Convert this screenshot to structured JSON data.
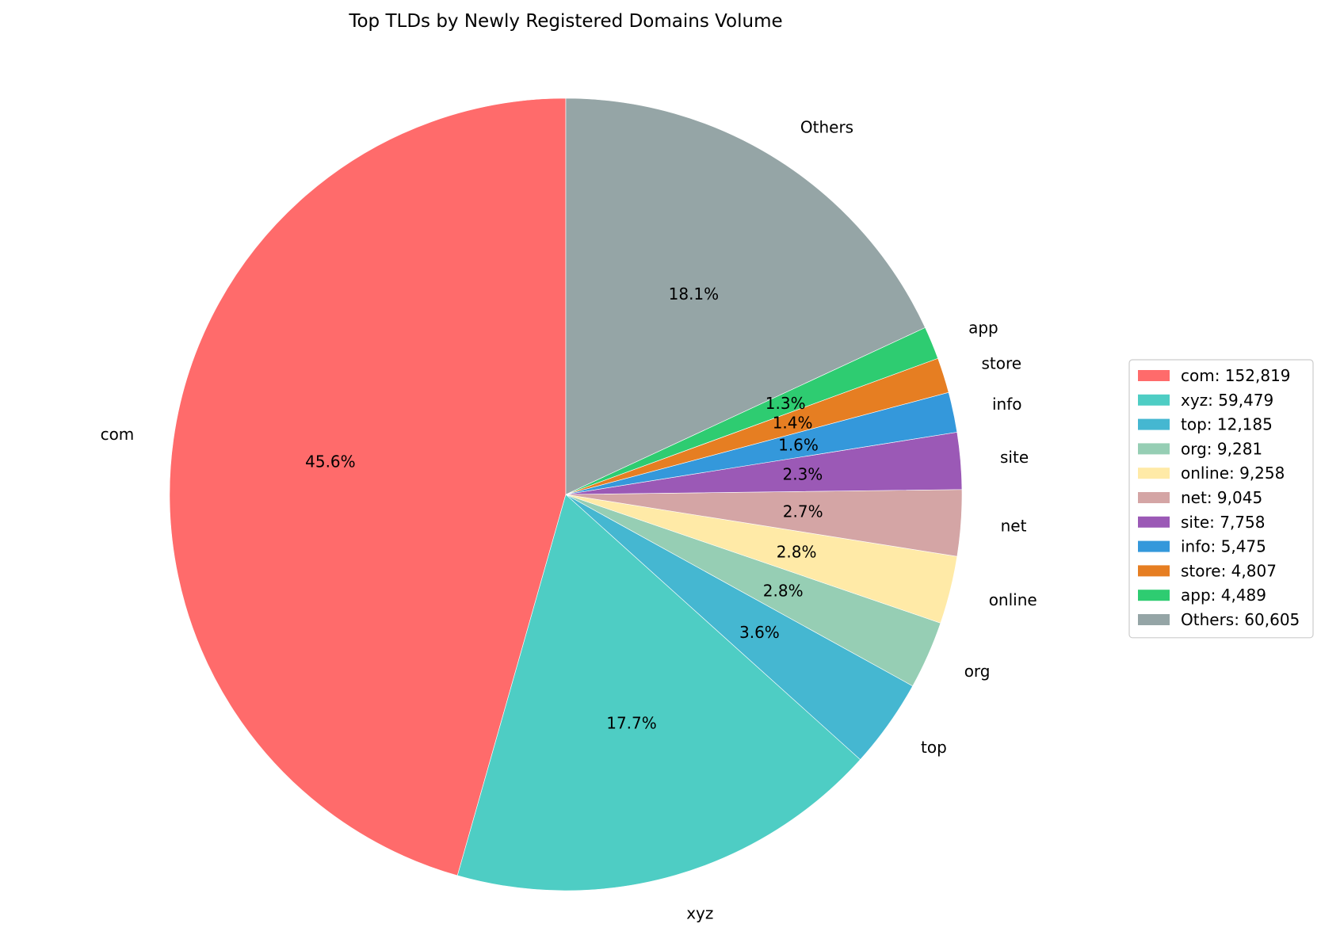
{
  "chart_data": {
    "type": "pie",
    "title": "Top TLDs by Newly Registered Domains Volume",
    "start_angle_deg": 90,
    "direction": "counterclockwise",
    "legend_position": "right",
    "slices": [
      {
        "label": "com",
        "value": 152819,
        "percent_label": "45.6%",
        "legend_label": "com: 152,819",
        "color": "#ff6b6b"
      },
      {
        "label": "xyz",
        "value": 59479,
        "percent_label": "17.7%",
        "legend_label": "xyz: 59,479",
        "color": "#4ecdc4"
      },
      {
        "label": "top",
        "value": 12185,
        "percent_label": "3.6%",
        "legend_label": "top: 12,185",
        "color": "#45b7d1"
      },
      {
        "label": "org",
        "value": 9281,
        "percent_label": "2.8%",
        "legend_label": "org: 9,281",
        "color": "#96ceb4"
      },
      {
        "label": "online",
        "value": 9258,
        "percent_label": "2.8%",
        "legend_label": "online: 9,258",
        "color": "#ffeaa7"
      },
      {
        "label": "net",
        "value": 9045,
        "percent_label": "2.7%",
        "legend_label": "net: 9,045",
        "color": "#d4a5a5"
      },
      {
        "label": "site",
        "value": 7758,
        "percent_label": "2.3%",
        "legend_label": "site: 7,758",
        "color": "#9b59b6"
      },
      {
        "label": "info",
        "value": 5475,
        "percent_label": "1.6%",
        "legend_label": "info: 5,475",
        "color": "#3498db"
      },
      {
        "label": "store",
        "value": 4807,
        "percent_label": "1.4%",
        "legend_label": "store: 4,807",
        "color": "#e67e22"
      },
      {
        "label": "app",
        "value": 4489,
        "percent_label": "1.3%",
        "legend_label": "app: 4,489",
        "color": "#2ecc71"
      },
      {
        "label": "Others",
        "value": 60605,
        "percent_label": "18.1%",
        "legend_label": "Others: 60,605",
        "color": "#95a5a6"
      }
    ]
  }
}
